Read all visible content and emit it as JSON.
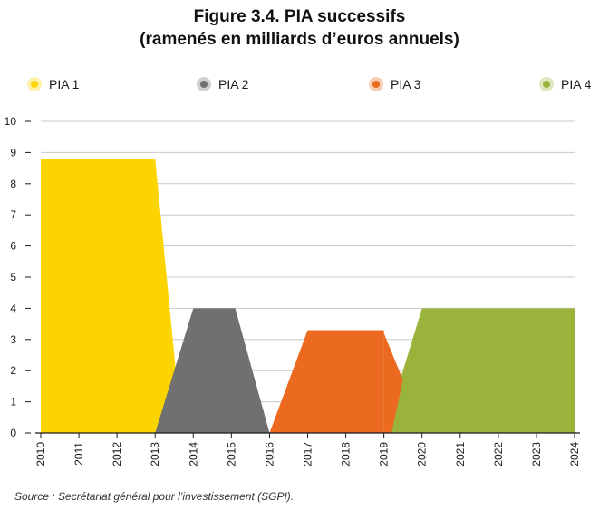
{
  "title_line1": "Figure 3.4. PIA successifs",
  "title_line2": "(ramenés en milliards d’euros annuels)",
  "source": "Source : Secrétariat général pour l’investissement (SGPI).",
  "legend": [
    {
      "label": "PIA 1",
      "color": "#fcd500"
    },
    {
      "label": "PIA 2",
      "color": "#707070"
    },
    {
      "label": "PIA 3",
      "color": "#ec6a20"
    },
    {
      "label": "PIA 4",
      "color": "#9ab33a"
    }
  ],
  "chart_data": {
    "type": "area",
    "title": "Figure 3.4. PIA successifs (ramenés en milliards d’euros annuels)",
    "xlabel": "",
    "ylabel": "",
    "ylim": [
      0,
      10
    ],
    "yticks": [
      "0",
      "1",
      "2",
      "3",
      "4",
      "5",
      "6",
      "7",
      "8",
      "9",
      "10"
    ],
    "x_tick_labels": [
      "2010",
      "2011",
      "2012",
      "2013",
      "2014",
      "2015",
      "2016",
      "2017",
      "2018",
      "2019",
      "2020",
      "2021",
      "2022",
      "2023",
      "2024"
    ],
    "grid": true,
    "legend_position": "top",
    "series": [
      {
        "name": "PIA 1",
        "color": "#fcd500",
        "points": [
          [
            2010,
            0
          ],
          [
            2010,
            8.8
          ],
          [
            2013,
            8.8
          ],
          [
            2013.7,
            0
          ]
        ]
      },
      {
        "name": "PIA 2",
        "color": "#707070",
        "points": [
          [
            2013,
            0
          ],
          [
            2014,
            4.0
          ],
          [
            2015.1,
            4.0
          ],
          [
            2016,
            0
          ]
        ]
      },
      {
        "name": "PIA 3",
        "color": "#ec6a20",
        "points": [
          [
            2016,
            0
          ],
          [
            2017,
            3.3
          ],
          [
            2019,
            3.3
          ],
          [
            2019,
            0
          ]
        ]
      },
      {
        "name": "PIA 4",
        "color": "#9ab33a",
        "points": [
          [
            2019,
            0
          ],
          [
            2020,
            4.0
          ],
          [
            2024,
            4.0
          ],
          [
            2024,
            0
          ]
        ]
      }
    ],
    "gap_fill": {
      "color": "#ec6a20",
      "points": [
        [
          2019,
          0
        ],
        [
          2019,
          3.2
        ],
        [
          2019.5,
          1.7
        ],
        [
          2019.2,
          0
        ]
      ]
    }
  }
}
